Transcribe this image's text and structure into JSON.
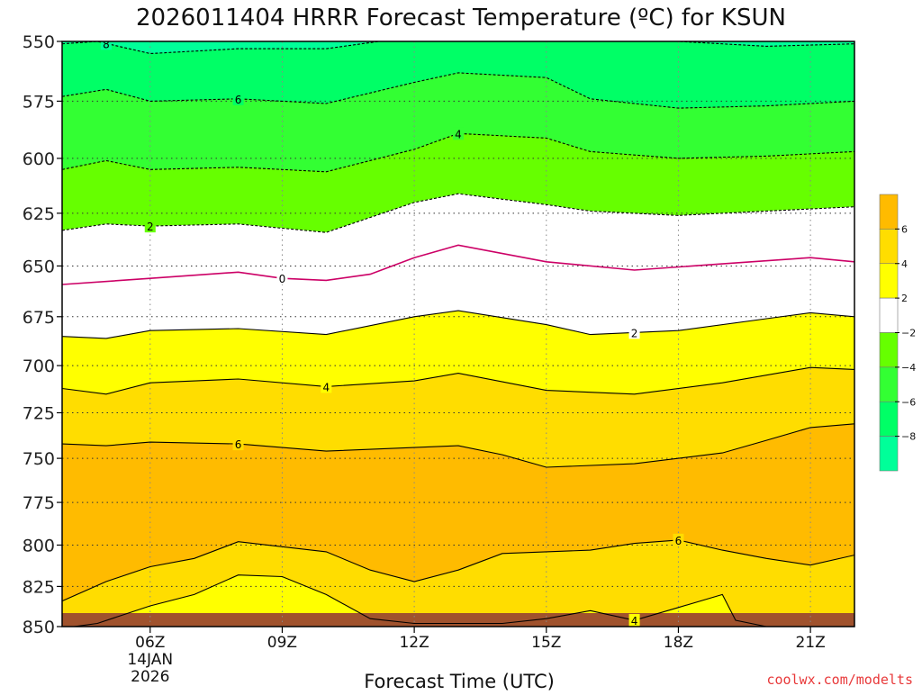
{
  "page": {
    "credit": "coolwx.com/modelts"
  },
  "chart_data": {
    "type": "heatmap",
    "title": "2026011404 HRRR Forecast Temperature (ºC) for KSUN",
    "xlabel": "Forecast Time (UTC)",
    "ylabel": "",
    "x_ticks": [
      {
        "x": 6,
        "label": "06Z",
        "sub": [
          "14JAN",
          "2026"
        ]
      },
      {
        "x": 9,
        "label": "09Z",
        "sub": []
      },
      {
        "x": 12,
        "label": "12Z",
        "sub": []
      },
      {
        "x": 15,
        "label": "15Z",
        "sub": []
      },
      {
        "x": 18,
        "label": "18Z",
        "sub": []
      },
      {
        "x": 21,
        "label": "21Z",
        "sub": []
      }
    ],
    "xlim": [
      4,
      22
    ],
    "ylim": [
      550,
      850
    ],
    "y_axis": "pressure (hPa), inverted, log scale",
    "y_ticks": [
      550,
      575,
      600,
      625,
      650,
      675,
      700,
      725,
      750,
      775,
      800,
      825,
      850
    ],
    "grid": true,
    "ground_level": 850,
    "ground_color": "#a0522d",
    "colorbar": {
      "position": "right",
      "bins": [
        {
          "range": [
            -10,
            -8
          ],
          "color": "#00ff99"
        },
        {
          "range": [
            -8,
            -6
          ],
          "color": "#00ff66"
        },
        {
          "range": [
            -6,
            -4
          ],
          "color": "#33ff33"
        },
        {
          "range": [
            -4,
            -2
          ],
          "color": "#66ff00"
        },
        {
          "range": [
            -2,
            2
          ],
          "color": "#ffffff"
        },
        {
          "range": [
            2,
            4
          ],
          "color": "#ffff00"
        },
        {
          "range": [
            4,
            6
          ],
          "color": "#ffdd00"
        },
        {
          "range": [
            6,
            8
          ],
          "color": "#ffbb00"
        }
      ],
      "tick_labels": [
        "6",
        "4",
        "2",
        "−2",
        "−4",
        "−6",
        "−8"
      ]
    },
    "contour_lines": [
      {
        "value": -8,
        "label": "8",
        "style": "dashed",
        "color": "#000000",
        "points": [
          [
            4,
            551
          ],
          [
            4.8,
            550
          ],
          [
            6,
            555
          ],
          [
            8,
            553
          ],
          [
            10,
            553
          ],
          [
            12,
            548
          ],
          [
            14,
            545
          ],
          [
            16,
            546
          ],
          [
            18,
            550
          ],
          [
            20,
            552
          ],
          [
            22,
            551
          ]
        ],
        "label_x": 5
      },
      {
        "value": -6,
        "label": "6",
        "style": "dashed",
        "color": "#000000",
        "points": [
          [
            4,
            573
          ],
          [
            5,
            570
          ],
          [
            6,
            575
          ],
          [
            8,
            574
          ],
          [
            10,
            576
          ],
          [
            12,
            567
          ],
          [
            13,
            563
          ],
          [
            15,
            565
          ],
          [
            16,
            574
          ],
          [
            18,
            578
          ],
          [
            20,
            577
          ],
          [
            22,
            575
          ]
        ],
        "label_x": 8
      },
      {
        "value": -4,
        "label": "4",
        "style": "dashed",
        "color": "#000000",
        "points": [
          [
            4,
            605
          ],
          [
            5,
            601
          ],
          [
            6,
            605
          ],
          [
            8,
            604
          ],
          [
            10,
            606
          ],
          [
            12,
            596
          ],
          [
            13,
            589
          ],
          [
            15,
            591
          ],
          [
            16,
            597
          ],
          [
            18,
            600
          ],
          [
            20,
            599
          ],
          [
            22,
            597
          ]
        ],
        "label_x": 13
      },
      {
        "value": -2,
        "label": "2",
        "style": "dashed",
        "color": "#000000",
        "points": [
          [
            4,
            633
          ],
          [
            5,
            630
          ],
          [
            6,
            631
          ],
          [
            8,
            630
          ],
          [
            10,
            634
          ],
          [
            12,
            620
          ],
          [
            13,
            616
          ],
          [
            15,
            621
          ],
          [
            16,
            624
          ],
          [
            18,
            626
          ],
          [
            20,
            624
          ],
          [
            22,
            622
          ]
        ],
        "label_x": 6
      },
      {
        "value": 0,
        "label": "0",
        "style": "solid",
        "color": "#cc0066",
        "points": [
          [
            4,
            659
          ],
          [
            6,
            656
          ],
          [
            8,
            653
          ],
          [
            9,
            656
          ],
          [
            10,
            657
          ],
          [
            11,
            654
          ],
          [
            12,
            646
          ],
          [
            13,
            640
          ],
          [
            15,
            648
          ],
          [
            17,
            652
          ],
          [
            19,
            649
          ],
          [
            21,
            646
          ],
          [
            22,
            648
          ]
        ],
        "label_x": 9
      },
      {
        "value": 2,
        "label": "2",
        "style": "solid",
        "color": "#000000",
        "points": [
          [
            4,
            685
          ],
          [
            5,
            686
          ],
          [
            6,
            682
          ],
          [
            8,
            681
          ],
          [
            10,
            684
          ],
          [
            12,
            675
          ],
          [
            13,
            672
          ],
          [
            15,
            679
          ],
          [
            16,
            684
          ],
          [
            18,
            682
          ],
          [
            20,
            676
          ],
          [
            21,
            673
          ],
          [
            22,
            675
          ]
        ],
        "label_x": 17
      },
      {
        "value": 4,
        "label": "4",
        "style": "solid",
        "color": "#000000",
        "points": [
          [
            4,
            712
          ],
          [
            5,
            715
          ],
          [
            6,
            709
          ],
          [
            8,
            707
          ],
          [
            10,
            711
          ],
          [
            12,
            708
          ],
          [
            13,
            704
          ],
          [
            15,
            713
          ],
          [
            17,
            715
          ],
          [
            19,
            709
          ],
          [
            21,
            701
          ],
          [
            22,
            702
          ]
        ],
        "label_x": 10
      },
      {
        "value": 6,
        "label": "6",
        "style": "solid",
        "color": "#000000",
        "points": [
          [
            4,
            742
          ],
          [
            5,
            743
          ],
          [
            6,
            741
          ],
          [
            8,
            742
          ],
          [
            10,
            746
          ],
          [
            12,
            744
          ],
          [
            13,
            743
          ],
          [
            14,
            748
          ],
          [
            15,
            755
          ],
          [
            17,
            753
          ],
          [
            19,
            747
          ],
          [
            20,
            740
          ],
          [
            21,
            733
          ],
          [
            22,
            731
          ]
        ],
        "label_x": 8
      },
      {
        "value": 6,
        "label": "6",
        "style": "solid",
        "color": "#000000",
        "points": [
          [
            4,
            834
          ],
          [
            5,
            822
          ],
          [
            6,
            813
          ],
          [
            7,
            808
          ],
          [
            8,
            798
          ],
          [
            9,
            801
          ],
          [
            10,
            804
          ],
          [
            11,
            815
          ],
          [
            12,
            822
          ],
          [
            13,
            815
          ],
          [
            14,
            805
          ],
          [
            16,
            803
          ],
          [
            17,
            799
          ],
          [
            18,
            797
          ],
          [
            19,
            803
          ],
          [
            20,
            808
          ],
          [
            21,
            812
          ],
          [
            22,
            806
          ]
        ],
        "label_x": 18
      },
      {
        "value": 4,
        "label": "4",
        "style": "solid",
        "color": "#000000",
        "points": [
          [
            4,
            851
          ],
          [
            4.8,
            848
          ],
          [
            6,
            837
          ],
          [
            7,
            830
          ],
          [
            8,
            818
          ],
          [
            9,
            819
          ],
          [
            10,
            830
          ],
          [
            11,
            845
          ],
          [
            12,
            848
          ],
          [
            14,
            848
          ],
          [
            15,
            845
          ],
          [
            16,
            840
          ],
          [
            17,
            846
          ],
          [
            18,
            838
          ],
          [
            19,
            830
          ],
          [
            19.3,
            846
          ],
          [
            20,
            850
          ]
        ],
        "label_x": 17
      }
    ]
  }
}
